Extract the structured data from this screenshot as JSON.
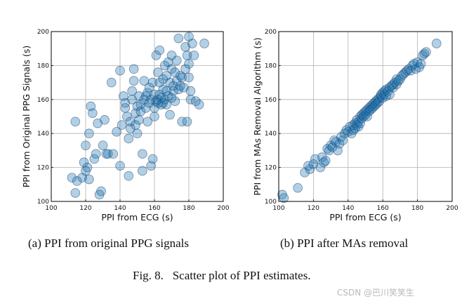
{
  "chart_data": [
    {
      "type": "scatter",
      "id": "a",
      "xlabel": "PPI from ECG (s)",
      "ylabel": "PPI from Original PPG Signals (s)",
      "xlim": [
        100,
        200
      ],
      "ylim": [
        100,
        200
      ],
      "xticks": [
        "100",
        "120",
        "140",
        "160",
        "180",
        "200"
      ],
      "yticks": [
        "100",
        "120",
        "140",
        "160",
        "180",
        "200"
      ],
      "grid": true,
      "marker_color": "#1f77b4",
      "points": [
        [
          112,
          114
        ],
        [
          114,
          105
        ],
        [
          115,
          112
        ],
        [
          114,
          147
        ],
        [
          118,
          114
        ],
        [
          119,
          123
        ],
        [
          120,
          118
        ],
        [
          120,
          133
        ],
        [
          121,
          120
        ],
        [
          122,
          140
        ],
        [
          122,
          113
        ],
        [
          123,
          156
        ],
        [
          124,
          152
        ],
        [
          125,
          125
        ],
        [
          126,
          128
        ],
        [
          127,
          146
        ],
        [
          128,
          104
        ],
        [
          129,
          106
        ],
        [
          130,
          133
        ],
        [
          131,
          148
        ],
        [
          132,
          128
        ],
        [
          133,
          128
        ],
        [
          135,
          170
        ],
        [
          136,
          128
        ],
        [
          138,
          141
        ],
        [
          140,
          177
        ],
        [
          140,
          121
        ],
        [
          141,
          145
        ],
        [
          142,
          162
        ],
        [
          143,
          158
        ],
        [
          143,
          155
        ],
        [
          144,
          150
        ],
        [
          145,
          115
        ],
        [
          145,
          137
        ],
        [
          146,
          147
        ],
        [
          146,
          143
        ],
        [
          147,
          160
        ],
        [
          147,
          165
        ],
        [
          148,
          178
        ],
        [
          148,
          171
        ],
        [
          149,
          145
        ],
        [
          149,
          152
        ],
        [
          150,
          156
        ],
        [
          150,
          140
        ],
        [
          151,
          162
        ],
        [
          151,
          148
        ],
        [
          152,
          157
        ],
        [
          152,
          153
        ],
        [
          153,
          128
        ],
        [
          153,
          118
        ],
        [
          154,
          160
        ],
        [
          154,
          171
        ],
        [
          155,
          162
        ],
        [
          155,
          155
        ],
        [
          156,
          164
        ],
        [
          156,
          147
        ],
        [
          157,
          158
        ],
        [
          157,
          167
        ],
        [
          158,
          121
        ],
        [
          158,
          160
        ],
        [
          159,
          125
        ],
        [
          159,
          170
        ],
        [
          160,
          155
        ],
        [
          160,
          163
        ],
        [
          160,
          150
        ],
        [
          161,
          186
        ],
        [
          161,
          159
        ],
        [
          162,
          158
        ],
        [
          162,
          176
        ],
        [
          162,
          160
        ],
        [
          163,
          189
        ],
        [
          163,
          163
        ],
        [
          163,
          170
        ],
        [
          164,
          161
        ],
        [
          164,
          157
        ],
        [
          165,
          172
        ],
        [
          165,
          166
        ],
        [
          165,
          158
        ],
        [
          166,
          160
        ],
        [
          166,
          180
        ],
        [
          167,
          165
        ],
        [
          167,
          174
        ],
        [
          167,
          157
        ],
        [
          168,
          182
        ],
        [
          168,
          162
        ],
        [
          169,
          170
        ],
        [
          169,
          151
        ],
        [
          170,
          186
        ],
        [
          170,
          161
        ],
        [
          170,
          178
        ],
        [
          171,
          165
        ],
        [
          171,
          168
        ],
        [
          172,
          176
        ],
        [
          172,
          159
        ],
        [
          173,
          183
        ],
        [
          173,
          171
        ],
        [
          174,
          196
        ],
        [
          174,
          166
        ],
        [
          175,
          174
        ],
        [
          175,
          168
        ],
        [
          176,
          173
        ],
        [
          176,
          147
        ],
        [
          177,
          167
        ],
        [
          178,
          191
        ],
        [
          178,
          178
        ],
        [
          179,
          186
        ],
        [
          179,
          147
        ],
        [
          180,
          197
        ],
        [
          180,
          173
        ],
        [
          180,
          181
        ],
        [
          181,
          160
        ],
        [
          181,
          165
        ],
        [
          182,
          193
        ],
        [
          183,
          186
        ],
        [
          184,
          159
        ],
        [
          186,
          157
        ],
        [
          189,
          193
        ]
      ]
    },
    {
      "type": "scatter",
      "id": "b",
      "xlabel": "PPI from ECG (s)",
      "ylabel": "PPI from MAs Removal Algorithm (s)",
      "xlim": [
        100,
        200
      ],
      "ylim": [
        100,
        200
      ],
      "xticks": [
        "100",
        "120",
        "140",
        "160",
        "180",
        "200"
      ],
      "yticks": [
        "100",
        "120",
        "140",
        "160",
        "180",
        "200"
      ],
      "grid": true,
      "marker_color": "#1f77b4",
      "points": [
        [
          102,
          104
        ],
        [
          103,
          102
        ],
        [
          111,
          108
        ],
        [
          115,
          117
        ],
        [
          117,
          121
        ],
        [
          118,
          119
        ],
        [
          120,
          122
        ],
        [
          121,
          125
        ],
        [
          124,
          120
        ],
        [
          125,
          126
        ],
        [
          126,
          123
        ],
        [
          127,
          124
        ],
        [
          128,
          131
        ],
        [
          129,
          130
        ],
        [
          130,
          133
        ],
        [
          131,
          132
        ],
        [
          132,
          136
        ],
        [
          133,
          135
        ],
        [
          134,
          130
        ],
        [
          135,
          134
        ],
        [
          136,
          138
        ],
        [
          137,
          136
        ],
        [
          138,
          140
        ],
        [
          139,
          142
        ],
        [
          140,
          141
        ],
        [
          141,
          144
        ],
        [
          142,
          140
        ],
        [
          143,
          145
        ],
        [
          143,
          142
        ],
        [
          144,
          146
        ],
        [
          144,
          143
        ],
        [
          145,
          148
        ],
        [
          145,
          145
        ],
        [
          146,
          147
        ],
        [
          146,
          144
        ],
        [
          147,
          150
        ],
        [
          147,
          146
        ],
        [
          148,
          149
        ],
        [
          148,
          151
        ],
        [
          149,
          150
        ],
        [
          149,
          152
        ],
        [
          150,
          151
        ],
        [
          150,
          153
        ],
        [
          151,
          154
        ],
        [
          151,
          150
        ],
        [
          152,
          155
        ],
        [
          152,
          153
        ],
        [
          153,
          156
        ],
        [
          153,
          154
        ],
        [
          154,
          157
        ],
        [
          154,
          155
        ],
        [
          155,
          158
        ],
        [
          155,
          156
        ],
        [
          156,
          159
        ],
        [
          156,
          157
        ],
        [
          157,
          160
        ],
        [
          157,
          158
        ],
        [
          158,
          161
        ],
        [
          158,
          159
        ],
        [
          159,
          162
        ],
        [
          159,
          163
        ],
        [
          160,
          164
        ],
        [
          160,
          161
        ],
        [
          161,
          163
        ],
        [
          161,
          165
        ],
        [
          162,
          166
        ],
        [
          162,
          162
        ],
        [
          163,
          165
        ],
        [
          164,
          167
        ],
        [
          164,
          163
        ],
        [
          165,
          168
        ],
        [
          166,
          167
        ],
        [
          166,
          169
        ],
        [
          167,
          170
        ],
        [
          168,
          169
        ],
        [
          168,
          172
        ],
        [
          169,
          171
        ],
        [
          170,
          172
        ],
        [
          171,
          174
        ],
        [
          172,
          175
        ],
        [
          173,
          176
        ],
        [
          174,
          177
        ],
        [
          175,
          178
        ],
        [
          176,
          177
        ],
        [
          177,
          180
        ],
        [
          178,
          181
        ],
        [
          179,
          178
        ],
        [
          180,
          182
        ],
        [
          181,
          179
        ],
        [
          182,
          181
        ],
        [
          183,
          186
        ],
        [
          184,
          187
        ],
        [
          185,
          188
        ],
        [
          191,
          193
        ]
      ]
    }
  ],
  "captions": {
    "a": "(a) PPI from original PPG signals",
    "b": "(b) PPI after MAs removal",
    "figure_label": "Fig. 8.",
    "figure_text": "Scatter plot of PPI estimates."
  },
  "watermark": "CSDN @巴川笑笑生"
}
